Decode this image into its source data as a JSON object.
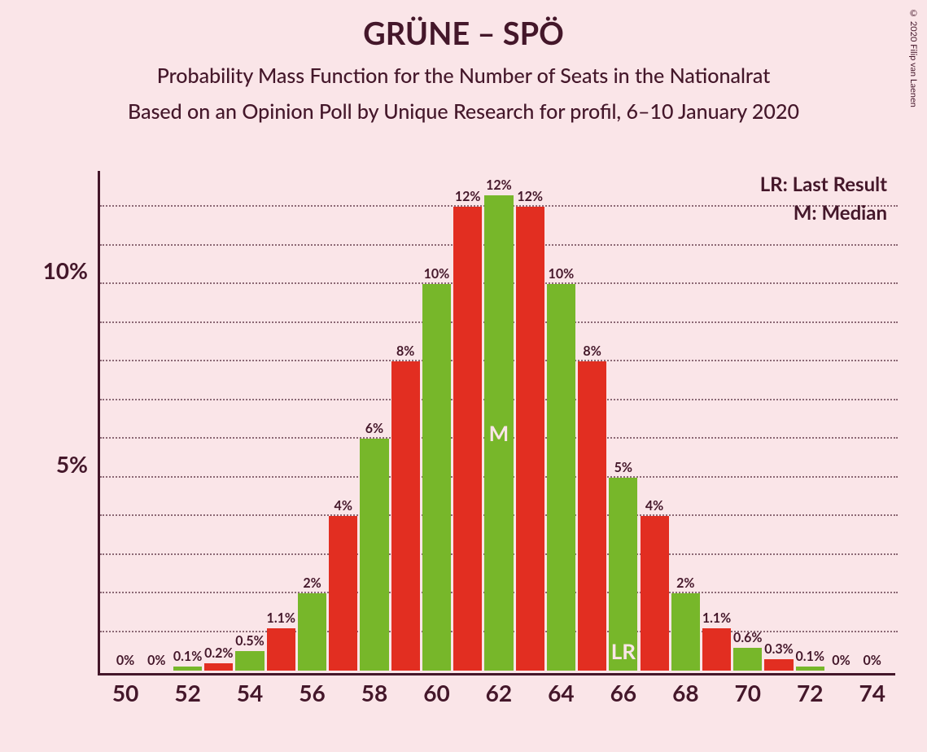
{
  "title": "GRÜNE – SPÖ",
  "subtitle1": "Probability Mass Function for the Number of Seats in the Nationalrat",
  "subtitle2": "Based on an Opinion Poll by Unique Research for profil, 6–10 January 2020",
  "copyright": "© 2020 Filip van Laenen",
  "legend": {
    "lr": "LR: Last Result",
    "m": "M: Median"
  },
  "chart": {
    "type": "bar",
    "background_color": "#fae5e8",
    "axis_color": "#44172a",
    "grid_color": "#44172a",
    "title_fontsize": 38,
    "subtitle_fontsize": 25,
    "label_fontsize": 28,
    "bar_label_fontsize": 16,
    "ylim": [
      0,
      13
    ],
    "ytick_major": [
      5,
      10
    ],
    "ytick_minor": [
      1,
      2,
      3,
      4,
      6,
      7,
      8,
      9,
      11,
      12
    ],
    "ytick_labels": [
      "5%",
      "10%"
    ],
    "xtick_every": 2,
    "colors": {
      "green": "#77b72a",
      "red": "#e22e21"
    },
    "median_label": "M",
    "lr_label": "LR",
    "bars": [
      {
        "x": 50,
        "value": 0,
        "label": "0%",
        "color": "green"
      },
      {
        "x": 51,
        "value": 0,
        "label": "0%",
        "color": "red"
      },
      {
        "x": 52,
        "value": 0.1,
        "label": "0.1%",
        "color": "green"
      },
      {
        "x": 53,
        "value": 0.2,
        "label": "0.2%",
        "color": "red"
      },
      {
        "x": 54,
        "value": 0.5,
        "label": "0.5%",
        "color": "green"
      },
      {
        "x": 55,
        "value": 1.1,
        "label": "1.1%",
        "color": "red"
      },
      {
        "x": 56,
        "value": 2,
        "label": "2%",
        "color": "green"
      },
      {
        "x": 57,
        "value": 4,
        "label": "4%",
        "color": "red"
      },
      {
        "x": 58,
        "value": 6,
        "label": "6%",
        "color": "green"
      },
      {
        "x": 59,
        "value": 8,
        "label": "8%",
        "color": "red"
      },
      {
        "x": 60,
        "value": 10,
        "label": "10%",
        "color": "green"
      },
      {
        "x": 61,
        "value": 12,
        "label": "12%",
        "color": "red"
      },
      {
        "x": 62,
        "value": 12.3,
        "label": "12%",
        "color": "green",
        "marker": "M"
      },
      {
        "x": 63,
        "value": 12,
        "label": "12%",
        "color": "red"
      },
      {
        "x": 64,
        "value": 10,
        "label": "10%",
        "color": "green"
      },
      {
        "x": 65,
        "value": 8,
        "label": "8%",
        "color": "red"
      },
      {
        "x": 66,
        "value": 5,
        "label": "5%",
        "color": "green",
        "marker": "LR"
      },
      {
        "x": 67,
        "value": 4,
        "label": "4%",
        "color": "red"
      },
      {
        "x": 68,
        "value": 2,
        "label": "2%",
        "color": "green"
      },
      {
        "x": 69,
        "value": 1.1,
        "label": "1.1%",
        "color": "red"
      },
      {
        "x": 70,
        "value": 0.6,
        "label": "0.6%",
        "color": "green"
      },
      {
        "x": 71,
        "value": 0.3,
        "label": "0.3%",
        "color": "red"
      },
      {
        "x": 72,
        "value": 0.1,
        "label": "0.1%",
        "color": "green"
      },
      {
        "x": 73,
        "value": 0,
        "label": "0%",
        "color": "red"
      },
      {
        "x": 74,
        "value": 0,
        "label": "0%",
        "color": "green"
      }
    ]
  }
}
